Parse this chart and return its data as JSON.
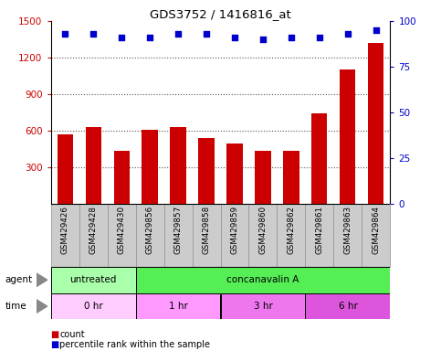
{
  "title": "GDS3752 / 1416816_at",
  "samples": [
    "GSM429426",
    "GSM429428",
    "GSM429430",
    "GSM429856",
    "GSM429857",
    "GSM429858",
    "GSM429859",
    "GSM429860",
    "GSM429862",
    "GSM429861",
    "GSM429863",
    "GSM429864"
  ],
  "counts": [
    570,
    630,
    430,
    610,
    630,
    540,
    490,
    430,
    430,
    740,
    1100,
    1320
  ],
  "percentile_ranks": [
    93,
    93,
    91,
    91,
    93,
    93,
    91,
    90,
    91,
    91,
    93,
    95
  ],
  "ylim_left": [
    0,
    1500
  ],
  "yticks_left": [
    300,
    600,
    900,
    1200,
    1500
  ],
  "ylim_right": [
    0,
    100
  ],
  "yticks_right": [
    0,
    25,
    50,
    75,
    100
  ],
  "bar_color": "#cc0000",
  "dot_color": "#0000cc",
  "bar_width": 0.55,
  "agent_row": [
    {
      "label": "untreated",
      "start": 0,
      "end": 3,
      "color": "#aaffaa"
    },
    {
      "label": "concanavalin A",
      "start": 3,
      "end": 12,
      "color": "#55ee55"
    }
  ],
  "time_row": [
    {
      "label": "0 hr",
      "start": 0,
      "end": 3,
      "color": "#ffccff"
    },
    {
      "label": "1 hr",
      "start": 3,
      "end": 6,
      "color": "#ff99ff"
    },
    {
      "label": "3 hr",
      "start": 6,
      "end": 9,
      "color": "#ee77ee"
    },
    {
      "label": "6 hr",
      "start": 9,
      "end": 12,
      "color": "#dd55dd"
    }
  ],
  "legend_items": [
    {
      "label": "count",
      "color": "#cc0000"
    },
    {
      "label": "percentile rank within the sample",
      "color": "#0000cc"
    }
  ],
  "grid_color": "#555555",
  "background_color": "#ffffff",
  "tick_label_color_left": "#cc0000",
  "tick_label_color_right": "#0000cc",
  "cell_bg_color": "#cccccc",
  "cell_border_color": "#999999"
}
